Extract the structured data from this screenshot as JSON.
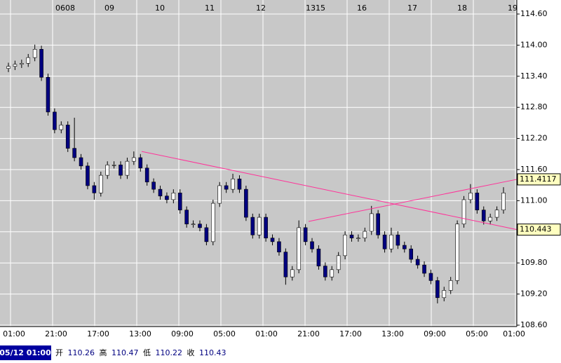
{
  "chart_data": {
    "type": "candlestick",
    "date_labels": [
      "0608",
      "09",
      "10",
      "11",
      "12",
      "1315",
      "16",
      "17",
      "18",
      "19"
    ],
    "x_labels": [
      "01:00",
      "21:00",
      "17:00",
      "13:00",
      "09:00",
      "05:00",
      "01:00",
      "21:00",
      "17:00",
      "13:00",
      "09:00",
      "05:00",
      "01:00"
    ],
    "ylim": [
      108.6,
      114.6
    ],
    "yticks": [
      {
        "value": 108.6,
        "label": "108.60"
      },
      {
        "value": 109.2,
        "label": "109.20"
      },
      {
        "value": 109.8,
        "label": "109.80"
      },
      {
        "value": 110.4,
        "label": "110.40"
      },
      {
        "value": 111,
        "label": "111.00"
      },
      {
        "value": 111.6,
        "label": "111.60"
      },
      {
        "value": 112.2,
        "label": "112.20"
      },
      {
        "value": 112.8,
        "label": "112.80"
      },
      {
        "value": 113.4,
        "label": "113.40"
      },
      {
        "value": 114,
        "label": "114.00"
      },
      {
        "value": 114.6,
        "label": "114.60"
      }
    ],
    "grid": true,
    "up_color": "#ffffff",
    "down_color": "#000080",
    "trendline_color": "#ff3399",
    "open": [
      113.55,
      113.59,
      113.63,
      113.65,
      113.76,
      113.92,
      113.38,
      112.71,
      112.37,
      112.46,
      112.01,
      111.83,
      111.67,
      111.29,
      111.15,
      111.49,
      111.69,
      111.69,
      111.49,
      111.76,
      111.83,
      111.63,
      111.36,
      111.22,
      111.09,
      111.02,
      111.15,
      110.82,
      110.55,
      110.55,
      110.48,
      110.21,
      110.95,
      111.29,
      111.22,
      111.42,
      111.22,
      110.68,
      110.34,
      110.68,
      110.28,
      110.21,
      110.01,
      109.53,
      109.67,
      110.48,
      110.21,
      110.07,
      109.74,
      109.53,
      109.67,
      109.94,
      110.34,
      110.28,
      110.28,
      110.41,
      110.75,
      110.34,
      110.07,
      110.34,
      110.14,
      110.07,
      109.87,
      109.76,
      109.6,
      109.46,
      109.13,
      109.27,
      109.46,
      110.55,
      111.02,
      111.15,
      110.82,
      110.61,
      110.68,
      110.82
    ],
    "high": [
      113.66,
      113.7,
      113.72,
      113.83,
      114.01,
      113.99,
      113.45,
      112.78,
      112.53,
      112.53,
      112.6,
      111.9,
      111.74,
      111.36,
      111.56,
      111.76,
      111.76,
      111.76,
      111.83,
      111.95,
      111.9,
      111.7,
      111.43,
      111.29,
      111.16,
      111.22,
      111.22,
      110.89,
      110.62,
      110.62,
      110.55,
      111.02,
      111.36,
      111.36,
      111.52,
      111.49,
      111.29,
      110.75,
      110.75,
      110.75,
      110.35,
      110.28,
      110.08,
      109.74,
      110.62,
      110.55,
      110.28,
      110.14,
      109.81,
      109.74,
      110.01,
      110.41,
      110.41,
      110.35,
      110.48,
      110.9,
      110.82,
      110.41,
      110.48,
      110.41,
      110.21,
      110.14,
      109.94,
      109.83,
      109.67,
      109.53,
      109.34,
      109.53,
      110.62,
      111.09,
      111.32,
      111.22,
      110.89,
      110.75,
      110.89,
      111.26
    ],
    "low": [
      113.48,
      113.52,
      113.56,
      113.58,
      113.69,
      113.31,
      112.64,
      112.3,
      112.3,
      111.94,
      111.76,
      111.6,
      111.22,
      111.02,
      111.08,
      111.42,
      111.62,
      111.42,
      111.42,
      111.69,
      111.56,
      111.29,
      111.15,
      111.02,
      110.95,
      110.95,
      110.75,
      110.48,
      110.48,
      110.41,
      110.14,
      110.14,
      110.88,
      111.15,
      111.15,
      111.15,
      110.61,
      110.27,
      110.27,
      110.21,
      110.14,
      109.94,
      109.38,
      109.46,
      109.6,
      110.14,
      110.0,
      109.67,
      109.46,
      109.46,
      109.6,
      109.87,
      110.21,
      110.21,
      110.21,
      110.34,
      110.27,
      110.0,
      110.0,
      110.07,
      110.0,
      109.8,
      109.69,
      109.53,
      109.39,
      109.02,
      109.06,
      109.2,
      109.39,
      110.48,
      110.95,
      110.75,
      110.54,
      110.54,
      110.61,
      110.75
    ],
    "close": [
      113.59,
      113.63,
      113.65,
      113.76,
      113.92,
      113.38,
      112.71,
      112.37,
      112.46,
      112.01,
      111.83,
      111.67,
      111.29,
      111.15,
      111.49,
      111.69,
      111.69,
      111.49,
      111.76,
      111.83,
      111.63,
      111.36,
      111.22,
      111.09,
      111.02,
      111.15,
      110.82,
      110.55,
      110.55,
      110.48,
      110.21,
      110.95,
      111.29,
      111.22,
      111.42,
      111.22,
      110.68,
      110.34,
      110.68,
      110.28,
      110.21,
      110.01,
      109.53,
      109.67,
      110.48,
      110.21,
      110.07,
      109.74,
      109.53,
      109.67,
      109.94,
      110.34,
      110.28,
      110.28,
      110.41,
      110.75,
      110.34,
      110.07,
      110.34,
      110.14,
      110.07,
      109.87,
      109.76,
      109.6,
      109.46,
      109.13,
      109.27,
      109.46,
      110.55,
      111.02,
      111.15,
      110.82,
      110.61,
      110.68,
      110.82,
      111.15
    ],
    "trendlines": [
      {
        "start": 111.95,
        "end": 110.443
      },
      {
        "start": 110.6,
        "end": 111.4117
      }
    ]
  },
  "status": {
    "time": "05/12 01:00",
    "open_label": "开",
    "open": 110.26,
    "high_label": "高",
    "high": 110.47,
    "low_label": "低",
    "low": 110.22,
    "close_label": "收",
    "close": 110.43
  }
}
